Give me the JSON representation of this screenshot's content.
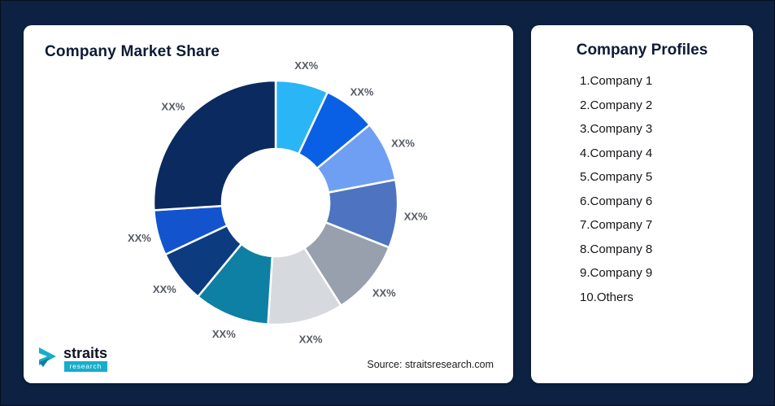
{
  "page": {
    "background": "#0d2142"
  },
  "left_card": {
    "title": "Company Market Share",
    "source": "Source: straitsresearch.com",
    "logo": {
      "name": "straits",
      "sub": "research",
      "icon": "straits-arrow-icon",
      "accent": "#15aecd"
    }
  },
  "right_card": {
    "title": "Company Profiles",
    "items": [
      "1.Company 1",
      "2.Company 2",
      "3.Company 3",
      "4.Company 4",
      "5.Company 5",
      "6.Company 6",
      "7.Company 7",
      "8.Company 8",
      "9.Company 9",
      "10.Others"
    ]
  },
  "chart_data": {
    "type": "pie",
    "subtype": "donut",
    "title": "Company Market Share",
    "unit": "%",
    "data_labels_shown_as": "XX%",
    "start": "12-o'clock",
    "direction": "clockwise",
    "inner_radius_ratio": 0.44,
    "segments": [
      {
        "name": "Company 1",
        "label": "XX%",
        "value_est": 7,
        "color": "#2ab5f6"
      },
      {
        "name": "Company 2",
        "label": "XX%",
        "value_est": 7,
        "color": "#0a60e4"
      },
      {
        "name": "Company 3",
        "label": "XX%",
        "value_est": 8,
        "color": "#6f9ff2"
      },
      {
        "name": "Company 4",
        "label": "XX%",
        "value_est": 9,
        "color": "#4e73c0"
      },
      {
        "name": "Company 5",
        "label": "XX%",
        "value_est": 10,
        "color": "#97a0ac"
      },
      {
        "name": "Company 6",
        "label": "XX%",
        "value_est": 10,
        "color": "#d6dade"
      },
      {
        "name": "Company 7",
        "label": "XX%",
        "value_est": 10,
        "color": "#0e80a4"
      },
      {
        "name": "Company 8",
        "label": "XX%",
        "value_est": 7,
        "color": "#0c3b80"
      },
      {
        "name": "Company 9",
        "label": "XX%",
        "value_est": 6,
        "color": "#1353cd"
      },
      {
        "name": "Others",
        "label": "XX%",
        "value_est": 26,
        "color": "#0b2a5f"
      }
    ]
  }
}
